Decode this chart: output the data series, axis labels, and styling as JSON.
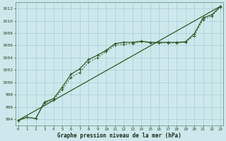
{
  "title": "Graphe pression niveau de la mer (hPa)",
  "background_color": "#cde8ec",
  "grid_color": "#a8cdd4",
  "line_color": "#2d5a27",
  "x_labels": [
    "0",
    "1",
    "2",
    "3",
    "4",
    "5",
    "6",
    "7",
    "8",
    "9",
    "10",
    "11",
    "12",
    "13",
    "14",
    "15",
    "16",
    "17",
    "18",
    "19",
    "20",
    "21",
    "22",
    "23"
  ],
  "xlim": [
    -0.3,
    23.3
  ],
  "ylim": [
    993.0,
    1013.0
  ],
  "yticks": [
    994,
    996,
    998,
    1000,
    1002,
    1004,
    1006,
    1008,
    1010,
    1012
  ],
  "series1": [
    993.8,
    994.3,
    994.1,
    996.8,
    997.3,
    999.2,
    1001.3,
    1002.2,
    1003.7,
    1004.4,
    1005.2,
    1006.3,
    1006.5,
    1006.5,
    1006.7,
    1006.5,
    1006.5,
    1006.5,
    1006.5,
    1006.6,
    1007.9,
    1010.5,
    1011.0,
    1012.4
  ],
  "series2": [
    993.8,
    994.3,
    994.1,
    996.6,
    997.1,
    998.8,
    1000.8,
    1001.6,
    1003.3,
    1004.0,
    1005.0,
    1006.0,
    1006.2,
    1006.3,
    1006.6,
    1006.4,
    1006.4,
    1006.4,
    1006.4,
    1006.5,
    1007.6,
    1010.2,
    1010.8,
    1012.3
  ],
  "series3_x": [
    0,
    23
  ],
  "series3_y": [
    993.8,
    1012.4
  ]
}
